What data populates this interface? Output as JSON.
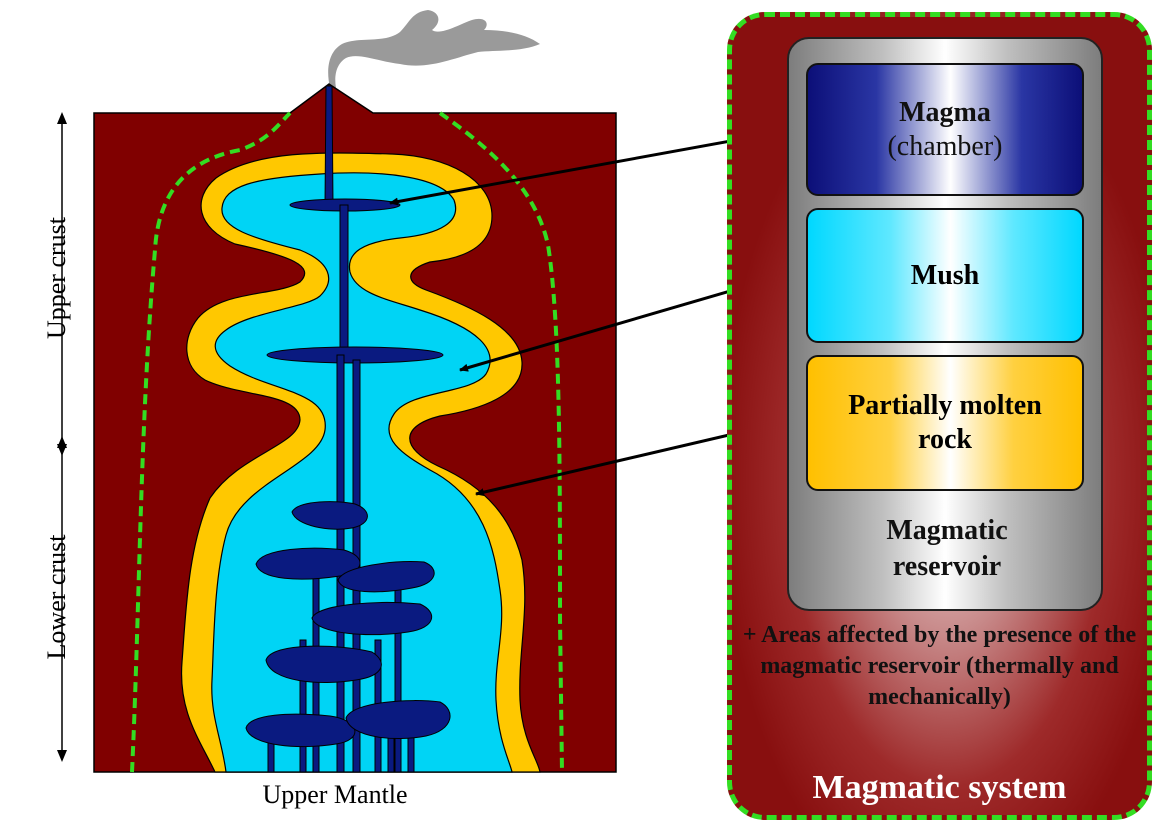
{
  "axis": {
    "upper_crust": "Upper crust",
    "lower_crust": "Lower crust",
    "upper_mantle": "Upper Mantle"
  },
  "legend": {
    "magma_title": "Magma",
    "magma_sub": "(chamber)",
    "mush": "Mush",
    "partially_molten": "Partially molten rock",
    "reservoir": "Magmatic reservoir",
    "affected": "+ Areas affected by the presence of the magmatic reservoir (thermally and mechanically)",
    "system": "Magmatic system"
  },
  "colors": {
    "host_rock": "#800000",
    "partially_molten": "#ffc800",
    "mush": "#00d4f5",
    "magma": "#0a1a80",
    "system_boundary": "#33dd22",
    "smoke": "#999999"
  }
}
